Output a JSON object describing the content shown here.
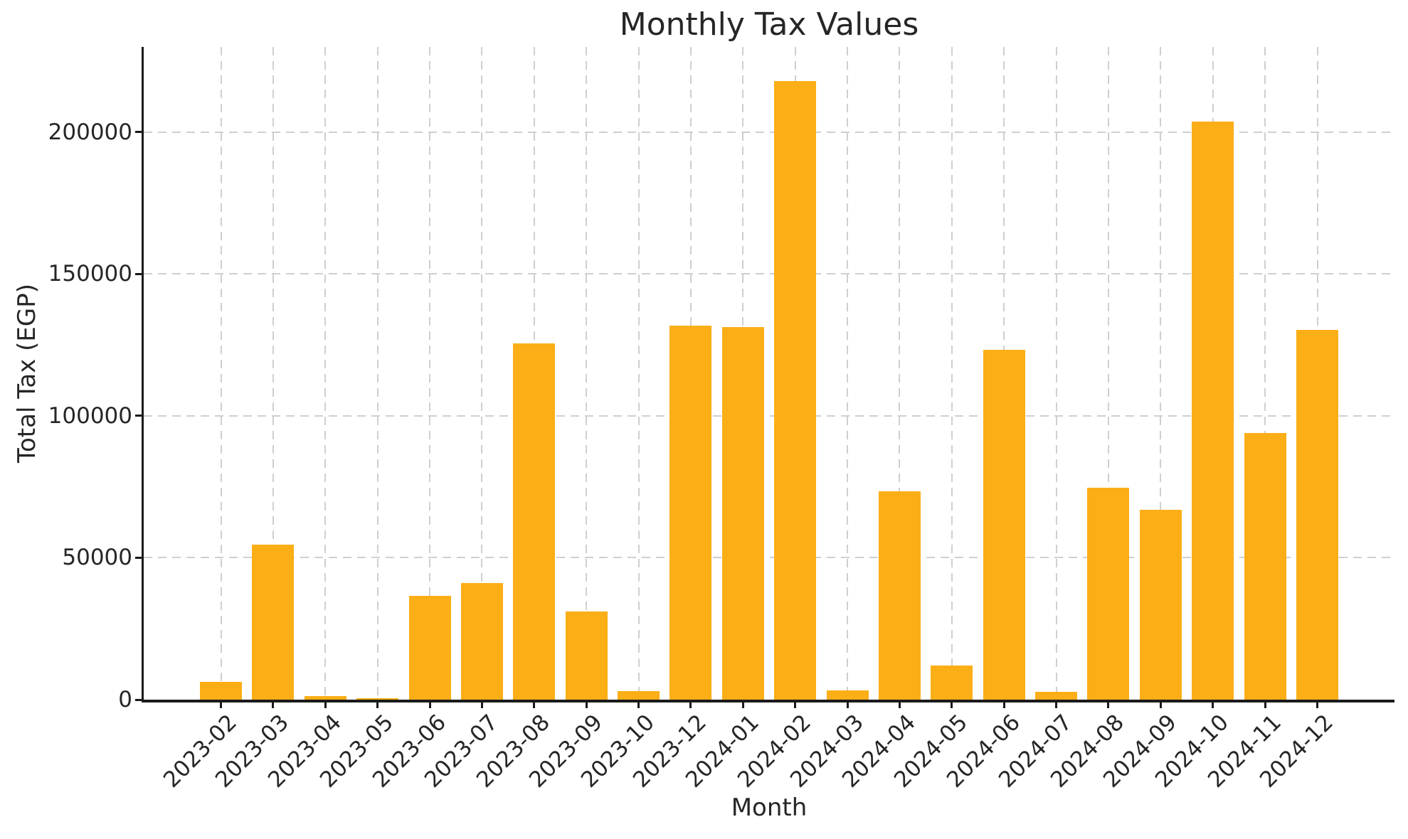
{
  "figure": {
    "title": "Monthly Tax Values",
    "background_color": "#ffffff"
  },
  "chart_data": {
    "type": "bar",
    "title": "Monthly Tax Values",
    "xlabel": "Month",
    "ylabel": "Total Tax (EGP)",
    "categories": [
      "2023-02",
      "2023-03",
      "2023-04",
      "2023-05",
      "2023-06",
      "2023-07",
      "2023-08",
      "2023-09",
      "2023-10",
      "2023-12",
      "2024-01",
      "2024-02",
      "2024-03",
      "2024-04",
      "2024-05",
      "2024-06",
      "2024-07",
      "2024-08",
      "2024-09",
      "2024-10",
      "2024-11",
      "2024-12"
    ],
    "values": [
      6200,
      54500,
      1200,
      400,
      36500,
      41000,
      125500,
      31000,
      2900,
      131700,
      131200,
      218000,
      3200,
      73300,
      12000,
      123300,
      2700,
      74600,
      66800,
      203700,
      94000,
      130300
    ],
    "yticks": [
      0,
      50000,
      100000,
      150000,
      200000
    ],
    "ytick_labels": [
      "0",
      "50000",
      "100000",
      "150000",
      "200000"
    ],
    "ylim": [
      0,
      230000
    ],
    "x_tick_rotation_deg": 45,
    "grid": true,
    "legend": "none",
    "bar_color": "#fcae17",
    "grid_color": "#cfcfcf",
    "axis_color": "#1a1a1a",
    "text_color": "#262626"
  }
}
